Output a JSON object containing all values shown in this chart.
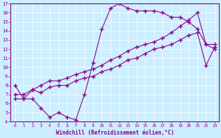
{
  "line1_x": [
    0,
    1,
    2,
    3,
    4,
    5,
    6,
    7,
    8,
    9,
    10,
    11,
    12,
    13,
    14,
    15,
    16,
    17,
    18,
    19,
    20,
    21,
    22,
    23
  ],
  "line1_y": [
    8.0,
    6.5,
    6.5,
    5.5,
    4.5,
    5.0,
    4.5,
    4.2,
    7.0,
    10.5,
    14.2,
    16.5,
    17.0,
    16.5,
    16.2,
    16.2,
    16.2,
    16.0,
    15.5,
    15.5,
    15.0,
    14.2,
    12.5,
    12.0
  ],
  "line2_x": [
    0,
    1,
    2,
    3,
    4,
    5,
    6,
    7,
    8,
    9,
    10,
    11,
    12,
    13,
    14,
    15,
    16,
    17,
    18,
    19,
    20,
    21,
    22,
    23
  ],
  "line2_y": [
    6.5,
    6.5,
    7.5,
    7.2,
    7.8,
    8.0,
    8.0,
    8.5,
    8.8,
    9.0,
    9.5,
    9.8,
    10.2,
    10.8,
    11.0,
    11.5,
    12.0,
    12.2,
    12.5,
    13.0,
    13.5,
    13.8,
    10.2,
    12.2
  ],
  "line3_x": [
    0,
    1,
    2,
    3,
    4,
    5,
    6,
    7,
    8,
    9,
    10,
    11,
    12,
    13,
    14,
    15,
    16,
    17,
    18,
    19,
    20,
    21,
    22,
    23
  ],
  "line3_y": [
    7.0,
    7.0,
    7.5,
    8.0,
    8.5,
    8.5,
    8.8,
    9.2,
    9.5,
    9.8,
    10.2,
    10.8,
    11.2,
    11.8,
    12.2,
    12.5,
    12.8,
    13.2,
    13.8,
    14.5,
    15.2,
    16.0,
    12.5,
    12.5
  ],
  "line_color": "#880088",
  "bg_color": "#cceeff",
  "xlabel": "Windchill (Refroidissement éolien,°C)",
  "xlim": [
    -0.5,
    23.5
  ],
  "ylim": [
    4,
    17
  ],
  "xticks": [
    0,
    1,
    2,
    3,
    4,
    5,
    6,
    7,
    8,
    9,
    10,
    11,
    12,
    13,
    14,
    15,
    16,
    17,
    18,
    19,
    20,
    21,
    22,
    23
  ],
  "yticks": [
    4,
    5,
    6,
    7,
    8,
    9,
    10,
    11,
    12,
    13,
    14,
    15,
    16,
    17
  ]
}
